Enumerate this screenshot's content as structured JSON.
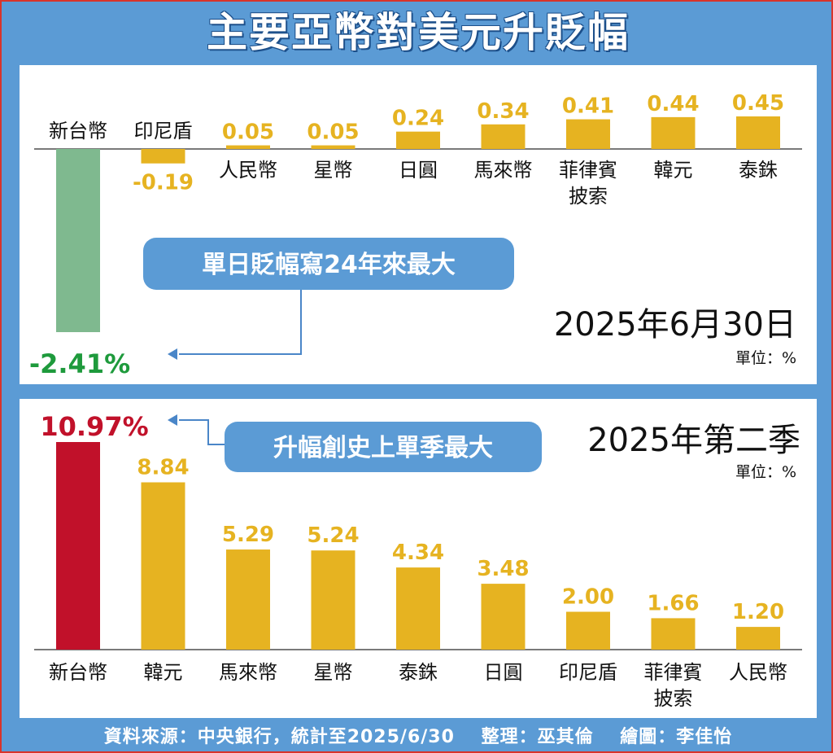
{
  "title": "主要亞幣對美元升貶幅",
  "colors": {
    "background": "#5b9bd5",
    "bar": "#e6b321",
    "twd_negative": "#7fb98f",
    "twd_negative_label": "#1e9a3c",
    "twd_positive": "#c1112a",
    "callout_bg": "#5b9bd5",
    "arrow": "#4a86c8"
  },
  "top_panel": {
    "date": "2025年6月30日",
    "unit": "單位：%",
    "callout": "單日貶幅寫24年來最大",
    "highlight_value_label": "-2.41%"
  },
  "bottom_panel": {
    "date": "2025年第二季",
    "unit": "單位：%",
    "callout": "升幅創史上單季最大",
    "highlight_value_label": "10.97%"
  },
  "chart_data": [
    {
      "type": "bar",
      "title": "2025年6月30日",
      "categories": [
        "新台幣",
        "印尼盾",
        "人民幣",
        "星幣",
        "日圓",
        "馬來幣",
        "菲律賓披索",
        "韓元",
        "泰銖"
      ],
      "values": [
        -2.41,
        -0.19,
        0.05,
        0.05,
        0.24,
        0.34,
        0.41,
        0.44,
        0.45
      ],
      "value_labels": [
        "-2.41%",
        "-0.19",
        "0.05",
        "0.05",
        "0.24",
        "0.34",
        "0.41",
        "0.44",
        "0.45"
      ],
      "unit": "%"
    },
    {
      "type": "bar",
      "title": "2025年第二季",
      "categories": [
        "新台幣",
        "韓元",
        "馬來幣",
        "星幣",
        "泰銖",
        "日圓",
        "印尼盾",
        "菲律賓披索",
        "人民幣"
      ],
      "values": [
        10.97,
        8.84,
        5.29,
        5.24,
        4.34,
        3.48,
        2.0,
        1.66,
        1.2
      ],
      "value_labels": [
        "10.97%",
        "8.84",
        "5.29",
        "5.24",
        "4.34",
        "3.48",
        "2.00",
        "1.66",
        "1.20"
      ],
      "unit": "%"
    }
  ],
  "footer": {
    "source": "資料來源：中央銀行，統計至2025/6/30",
    "editor": "整理：巫其倫",
    "illustrator": "繪圖：李佳怡"
  }
}
